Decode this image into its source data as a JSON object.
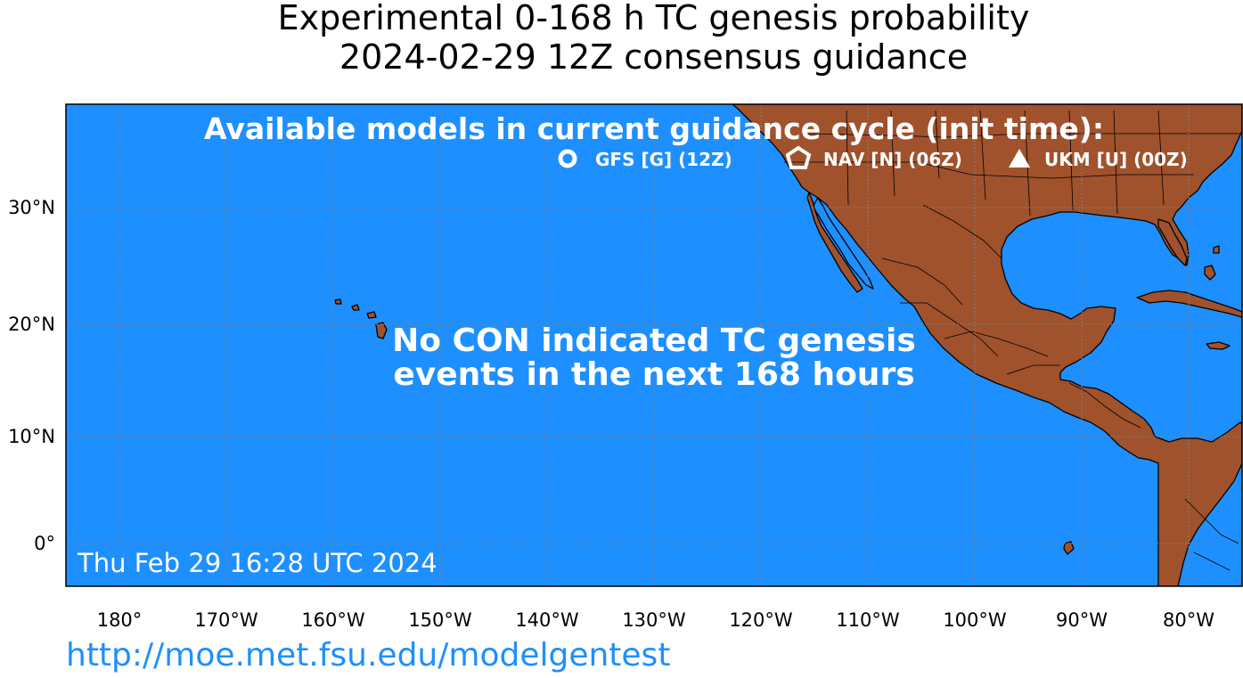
{
  "title": {
    "line1": "Experimental 0-168 h TC genesis probability",
    "line2": "2024-02-29 12Z consensus guidance"
  },
  "legend": {
    "heading": "Available models in current guidance cycle (init time):",
    "models": [
      {
        "label": "GFS [G] (12Z)",
        "icon": "circle-icon"
      },
      {
        "label": "NAV [N] (06Z)",
        "icon": "pentagon-icon"
      },
      {
        "label": "UKM [U] (00Z)",
        "icon": "triangle-icon"
      }
    ]
  },
  "message": {
    "line1": "No CON indicated TC genesis",
    "line2": "events in the next 168 hours"
  },
  "timestamp": "Thu Feb 29 16:28 UTC 2024",
  "axes": {
    "lon_labels": [
      "180°",
      "170°W",
      "160°W",
      "150°W",
      "140°W",
      "130°W",
      "120°W",
      "110°W",
      "100°W",
      "90°W",
      "80°W"
    ],
    "lat_labels": [
      "30°N",
      "20°N",
      "10°N",
      "0°"
    ]
  },
  "source_url": "http://moe.met.fsu.edu/modelgentest",
  "colors": {
    "ocean": "#1e8fff",
    "land": "#a0522d",
    "border": "#000000",
    "gridline": "#808080",
    "overlay_text": "#ffffff"
  }
}
